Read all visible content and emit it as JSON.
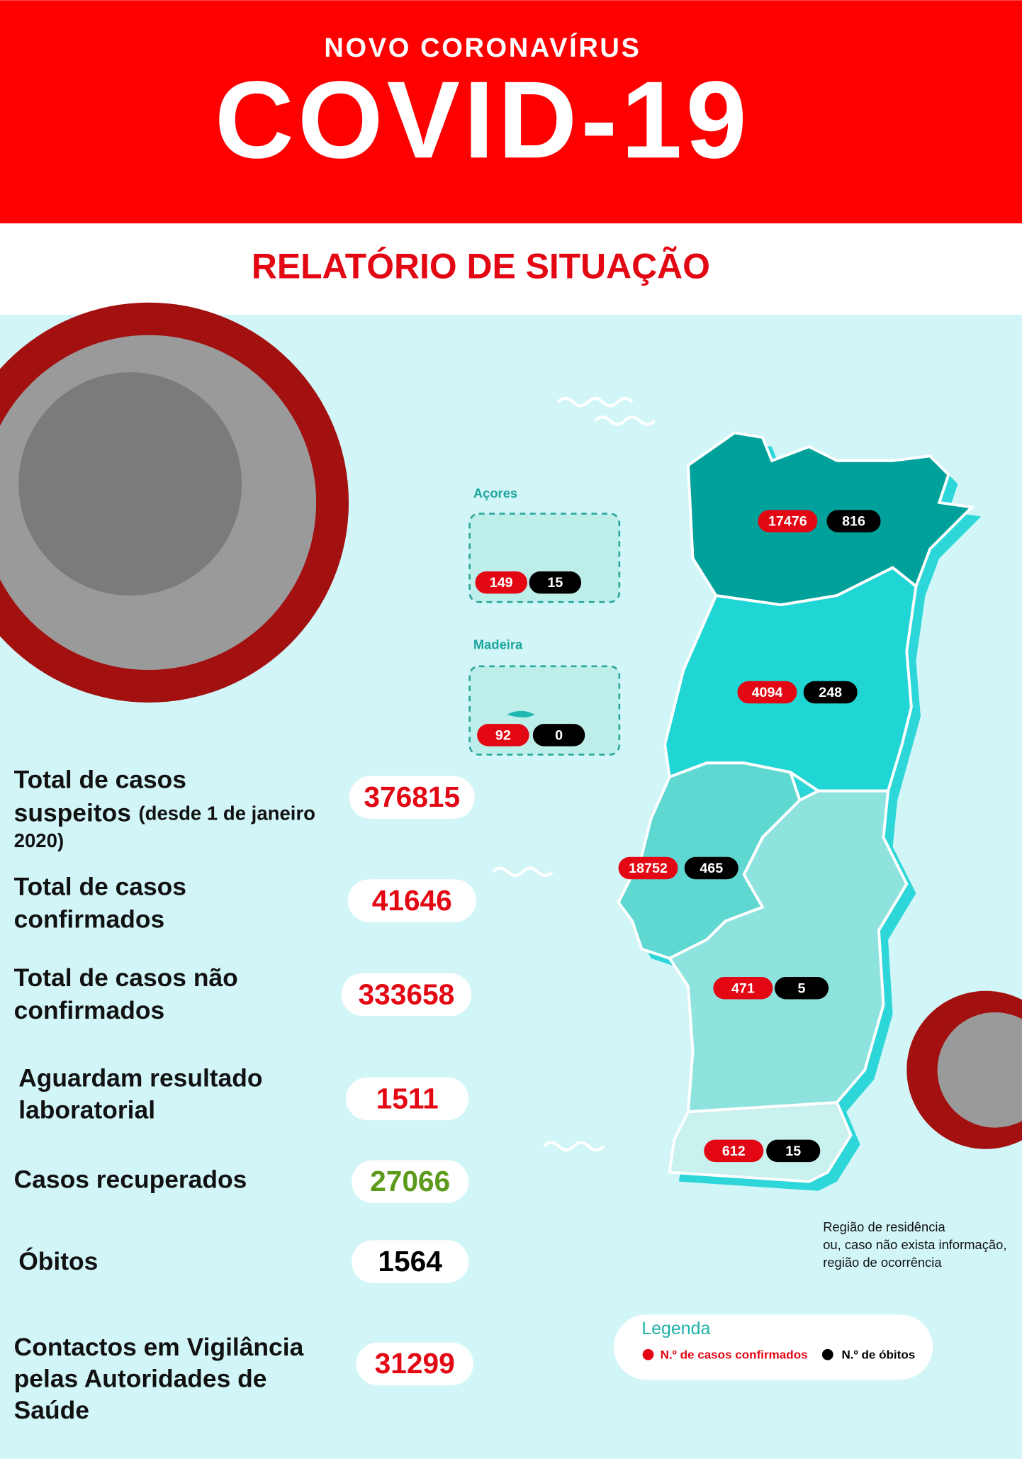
{
  "header": {
    "kicker": "NOVO CORONAVÍRUS",
    "title": "COVID-19",
    "subtitle": "RELATÓRIO DE SITUAÇÃO"
  },
  "stats": [
    {
      "label": [
        "Total de casos",
        "suspeitos"
      ],
      "note": [
        "(desde 1 de janeiro",
        "2020)"
      ],
      "value": 376815,
      "color": "#e30613"
    },
    {
      "label": [
        "Total de casos",
        "confirmados"
      ],
      "value": 41646,
      "color": "#e30613"
    },
    {
      "label": [
        "Total de casos não",
        "confirmados"
      ],
      "value": 333658,
      "color": "#e30613"
    },
    {
      "label": [
        "Aguardam resultado",
        "laboratorial"
      ],
      "value": 1511,
      "color": "#e30613"
    },
    {
      "label": [
        "Casos recuperados"
      ],
      "value": 27066,
      "color": "#5c9a1b"
    },
    {
      "label": [
        "Óbitos"
      ],
      "value": 1564,
      "color": "#000000"
    },
    {
      "label": [
        "Contactos em Vigilância",
        "pelas Autoridades de",
        "Saúde"
      ],
      "value": 31299,
      "color": "#e30613"
    }
  ],
  "map": {
    "islands": [
      {
        "name": "Açores",
        "confirmed": 149,
        "deaths": 15
      },
      {
        "name": "Madeira",
        "confirmed": 92,
        "deaths": 0
      }
    ],
    "regions": [
      {
        "confirmed": 17476,
        "deaths": 816
      },
      {
        "confirmed": 4094,
        "deaths": 248
      },
      {
        "confirmed": 18752,
        "deaths": 465
      },
      {
        "confirmed": 471,
        "deaths": 5
      },
      {
        "confirmed": 612,
        "deaths": 15
      }
    ]
  },
  "note": [
    "Região de residência",
    "ou, caso não exista informação,",
    "região de ocorrência"
  ],
  "legend": {
    "title": "Legenda",
    "items": [
      {
        "label": "N.º de casos confirmados",
        "color": "#e30613"
      },
      {
        "label": "N.º de óbitos",
        "color": "#000000"
      }
    ]
  }
}
